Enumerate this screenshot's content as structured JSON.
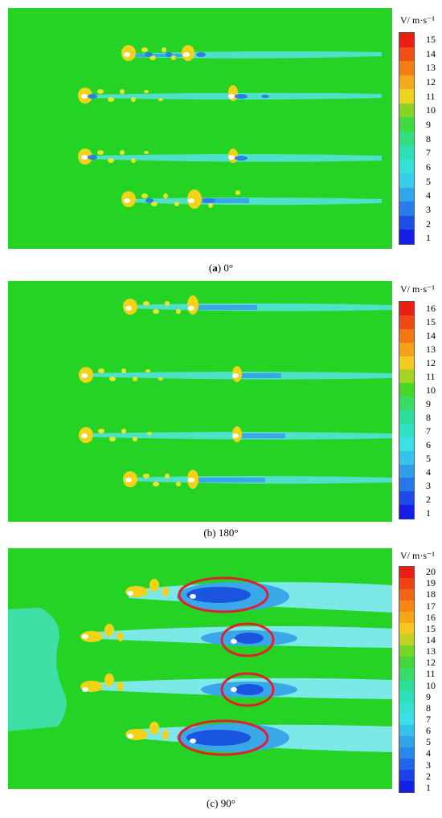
{
  "panels": [
    {
      "id": "a",
      "caption_letter": "a",
      "caption_angle": "0°",
      "caption_bold_paren": true,
      "colorbar": {
        "title": "V/ m·s⁻¹",
        "ticks": [
          "15",
          "14",
          "13",
          "12",
          "11",
          "10",
          "9",
          "8",
          "7",
          "6",
          "5",
          "4",
          "3",
          "2",
          "1"
        ]
      }
    },
    {
      "id": "b",
      "caption_letter": "b",
      "caption_angle": "180°",
      "caption_bold_paren": false,
      "colorbar": {
        "title": "V/ m·s⁻¹",
        "ticks": [
          "16",
          "15",
          "14",
          "13",
          "12",
          "11",
          "10",
          "9",
          "8",
          "7",
          "6",
          "5",
          "4",
          "3",
          "2",
          "1"
        ]
      }
    },
    {
      "id": "c",
      "caption_letter": "c",
      "caption_angle": "90°",
      "caption_bold_paren": false,
      "colorbar": {
        "title": "V/ m·s⁻¹",
        "ticks": [
          "20",
          "19",
          "18",
          "17",
          "16",
          "15",
          "14",
          "13",
          "12",
          "11",
          "10",
          "9",
          "8",
          "7",
          "6",
          "5",
          "4",
          "3",
          "2",
          "1"
        ]
      }
    }
  ],
  "colors": {
    "field_background": "#25d325",
    "highlight_ellipse": "#e0202a"
  }
}
